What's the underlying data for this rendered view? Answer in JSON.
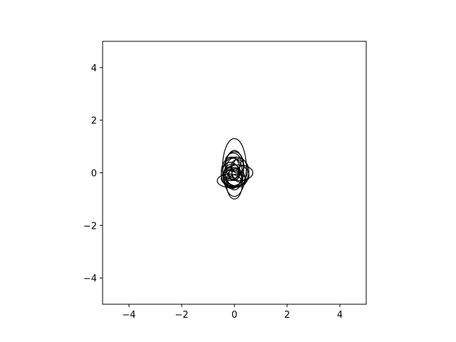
{
  "chart_data": {
    "type": "scatter",
    "title": "",
    "xlabel": "",
    "ylabel": "",
    "xlim": [
      -5,
      5
    ],
    "ylim": [
      -5,
      5
    ],
    "grid": false,
    "aspect": "equal",
    "xticks": [
      -4,
      -2,
      0,
      2,
      4
    ],
    "yticks": [
      -4,
      -2,
      0,
      2,
      4
    ],
    "xtick_labels": [
      "−4",
      "−2",
      "0",
      "2",
      "4"
    ],
    "ytick_labels": [
      "−4",
      "−2",
      "0",
      "2",
      "4"
    ],
    "ellipses": [
      {
        "cx": 0.0,
        "cy": 0.2,
        "w": 0.9,
        "h": 2.2,
        "angle": 0
      },
      {
        "cx": 0.0,
        "cy": 0.1,
        "w": 0.7,
        "h": 1.5,
        "angle": 0
      },
      {
        "cx": 0.0,
        "cy": -0.4,
        "w": 0.6,
        "h": 1.2,
        "angle": 0
      },
      {
        "cx": -0.1,
        "cy": -0.2,
        "w": 0.8,
        "h": 0.6,
        "angle": 0
      },
      {
        "cx": -0.2,
        "cy": -0.3,
        "w": 0.9,
        "h": 0.5,
        "angle": 0
      },
      {
        "cx": 0.15,
        "cy": 0.0,
        "w": 1.1,
        "h": 0.6,
        "angle": 0
      },
      {
        "cx": 0.1,
        "cy": -0.1,
        "w": 0.9,
        "h": 0.8,
        "angle": 0
      },
      {
        "cx": 0.0,
        "cy": 0.3,
        "w": 0.7,
        "h": 1.0,
        "angle": 0
      },
      {
        "cx": -0.1,
        "cy": 0.0,
        "w": 0.8,
        "h": 1.2,
        "angle": 0
      },
      {
        "cx": 0.2,
        "cy": 0.1,
        "w": 0.6,
        "h": 0.9,
        "angle": 0
      },
      {
        "cx": 0.1,
        "cy": -0.3,
        "w": 0.7,
        "h": 0.5,
        "angle": 0
      },
      {
        "cx": -0.05,
        "cy": 0.15,
        "w": 0.5,
        "h": 0.8,
        "angle": 0
      },
      {
        "cx": 0.0,
        "cy": 0.0,
        "w": 0.4,
        "h": 0.6,
        "angle": 0
      },
      {
        "cx": 0.05,
        "cy": -0.05,
        "w": 0.3,
        "h": 0.4,
        "angle": 0
      },
      {
        "cx": -0.15,
        "cy": 0.05,
        "w": 0.6,
        "h": 0.7,
        "angle": 0
      },
      {
        "cx": 0.12,
        "cy": 0.25,
        "w": 0.5,
        "h": 0.5,
        "angle": 0
      },
      {
        "cx": -0.08,
        "cy": -0.12,
        "w": 0.7,
        "h": 0.9,
        "angle": 0
      },
      {
        "cx": 0.05,
        "cy": 0.05,
        "w": 1.0,
        "h": 1.1,
        "angle": 0
      },
      {
        "cx": 0.0,
        "cy": -0.2,
        "w": 0.8,
        "h": 0.7,
        "angle": 0
      },
      {
        "cx": -0.05,
        "cy": 0.4,
        "w": 0.6,
        "h": 0.7,
        "angle": 0
      }
    ]
  }
}
